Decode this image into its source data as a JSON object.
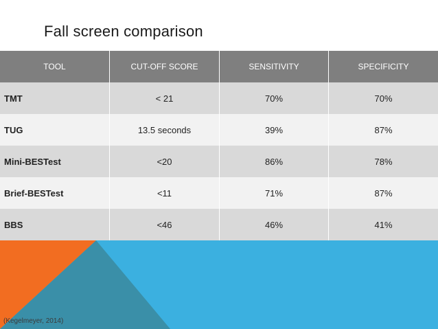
{
  "slide": {
    "title": "Fall screen comparison",
    "citation": "(Kegelmeyer, 2014)"
  },
  "table": {
    "headers": [
      "TOOL",
      "CUT-OFF SCORE",
      "SENSITIVITY",
      "SPECIFICITY"
    ],
    "rows": [
      {
        "tool": "TMT",
        "cutoff": "< 21",
        "sensitivity": "70%",
        "specificity": "70%"
      },
      {
        "tool": "TUG",
        "cutoff": "13.5 seconds",
        "sensitivity": "39%",
        "specificity": "87%"
      },
      {
        "tool": "Mini-BESTest",
        "cutoff": "<20",
        "sensitivity": "86%",
        "specificity": "78%"
      },
      {
        "tool": "Brief-BESTest",
        "cutoff": "<11",
        "sensitivity": "71%",
        "specificity": "87%"
      },
      {
        "tool": "BBS",
        "cutoff": "<46",
        "sensitivity": "46%",
        "specificity": "41%"
      }
    ]
  },
  "colors": {
    "header_bg": "#7f7f7f",
    "row_odd": "#d9d9d9",
    "row_even": "#f2f2f2",
    "accent_blue": "#3bb0e0",
    "accent_orange": "#f26d21",
    "accent_teal": "#3a8fa8"
  }
}
